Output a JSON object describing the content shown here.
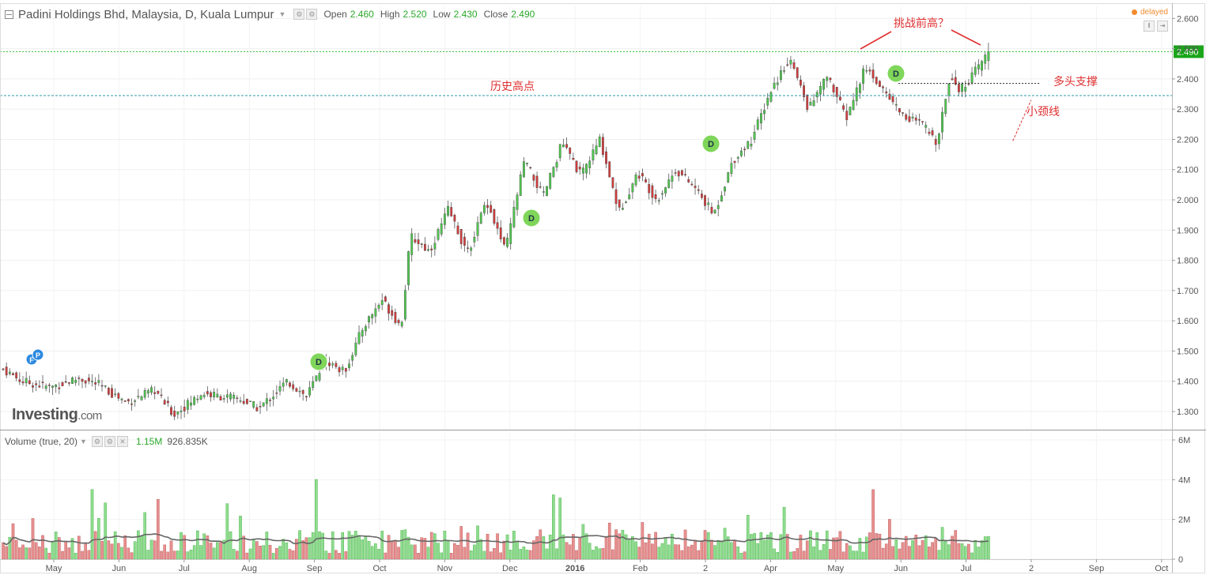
{
  "header": {
    "title": "Padini Holdings Bhd, Malaysia, D, Kuala Lumpur",
    "open_label": "Open",
    "open": "2.460",
    "high_label": "High",
    "high": "2.520",
    "low_label": "Low",
    "low": "2.430",
    "close_label": "Close",
    "close": "2.490"
  },
  "status": "delayed",
  "logo": {
    "brand": "Investing",
    "suffix": ".com"
  },
  "volume_header": {
    "label": "Volume (true, 20)",
    "value": "1.15M",
    "avg": "926.835K"
  },
  "colors": {
    "up": "#4ec94e",
    "down": "#d43c3c",
    "vol_up": "#8fdc8f",
    "vol_down": "#e89090",
    "annotation": "#e03030",
    "price_line": "#33bb33",
    "support_line": "#2a9aa8"
  },
  "chart_data": {
    "type": "candlestick",
    "price_axis": {
      "ticks": [
        "2.600",
        "2.500",
        "2.490",
        "2.400",
        "2.300",
        "2.200",
        "2.100",
        "2.000",
        "1.900",
        "1.800",
        "1.700",
        "1.600",
        "1.500",
        "1.400",
        "1.300"
      ],
      "range": [
        1.24,
        2.64
      ]
    },
    "volume_axis": {
      "ticks": [
        "6M",
        "4M",
        "2M",
        "0"
      ],
      "range": [
        0,
        6.2
      ]
    },
    "x_ticks": [
      "May",
      "Jun",
      "Jul",
      "Aug",
      "Sep",
      "Oct",
      "Nov",
      "Dec",
      "2016",
      "Feb",
      "2",
      "Apr",
      "May",
      "Jun",
      "Jul",
      "2",
      "Sep",
      "Oct"
    ],
    "last_price": 2.49,
    "historical_high_line": 2.345,
    "support_line": 2.385,
    "trendline": {
      "from": [
        0.435,
        2.195
      ],
      "to": [
        0.585,
        2.33
      ]
    },
    "key_prices": [
      {
        "t": 0.0,
        "p": 1.44
      },
      {
        "t": 0.02,
        "p": 1.4
      },
      {
        "t": 0.05,
        "p": 1.38
      },
      {
        "t": 0.08,
        "p": 1.41
      },
      {
        "t": 0.1,
        "p": 1.39
      },
      {
        "t": 0.13,
        "p": 1.33
      },
      {
        "t": 0.16,
        "p": 1.37
      },
      {
        "t": 0.18,
        "p": 1.29
      },
      {
        "t": 0.21,
        "p": 1.36
      },
      {
        "t": 0.25,
        "p": 1.34
      },
      {
        "t": 0.27,
        "p": 1.31
      },
      {
        "t": 0.3,
        "p": 1.4
      },
      {
        "t": 0.32,
        "p": 1.35
      },
      {
        "t": 0.34,
        "p": 1.47
      },
      {
        "t": 0.36,
        "p": 1.43
      },
      {
        "t": 0.38,
        "p": 1.58
      },
      {
        "t": 0.4,
        "p": 1.67
      },
      {
        "t": 0.42,
        "p": 1.58
      },
      {
        "t": 0.43,
        "p": 1.88
      },
      {
        "t": 0.45,
        "p": 1.83
      },
      {
        "t": 0.47,
        "p": 1.97
      },
      {
        "t": 0.49,
        "p": 1.82
      },
      {
        "t": 0.51,
        "p": 2.0
      },
      {
        "t": 0.53,
        "p": 1.83
      },
      {
        "t": 0.55,
        "p": 2.13
      },
      {
        "t": 0.57,
        "p": 2.01
      },
      {
        "t": 0.59,
        "p": 2.19
      },
      {
        "t": 0.61,
        "p": 2.08
      },
      {
        "t": 0.63,
        "p": 2.2
      },
      {
        "t": 0.65,
        "p": 1.96
      },
      {
        "t": 0.67,
        "p": 2.09
      },
      {
        "t": 0.69,
        "p": 2.0
      },
      {
        "t": 0.71,
        "p": 2.1
      },
      {
        "t": 0.73,
        "p": 2.04
      },
      {
        "t": 0.75,
        "p": 1.95
      },
      {
        "t": 0.77,
        "p": 2.13
      },
      {
        "t": 0.79,
        "p": 2.2
      },
      {
        "t": 0.81,
        "p": 2.36
      },
      {
        "t": 0.83,
        "p": 2.47
      },
      {
        "t": 0.85,
        "p": 2.3
      },
      {
        "t": 0.87,
        "p": 2.41
      },
      {
        "t": 0.89,
        "p": 2.27
      },
      {
        "t": 0.91,
        "p": 2.44
      },
      {
        "t": 0.93,
        "p": 2.36
      },
      {
        "t": 0.95,
        "p": 2.28
      },
      {
        "t": 0.97,
        "p": 2.25
      },
      {
        "t": 0.985,
        "p": 2.19
      },
      {
        "t": 1.0,
        "p": 2.42
      },
      {
        "t": 1.01,
        "p": 2.36
      },
      {
        "t": 1.03,
        "p": 2.44
      },
      {
        "t": 1.04,
        "p": 2.49
      }
    ],
    "annotations": [
      {
        "text": "挑战前高？"
      },
      {
        "text": "历史高点"
      },
      {
        "text": "多头支撑"
      },
      {
        "text": "小颈线"
      }
    ],
    "event_markers": [
      {
        "letter": "F",
        "kind": "blue"
      },
      {
        "letter": "P",
        "kind": "blue"
      },
      {
        "letter": "D",
        "kind": "green"
      },
      {
        "letter": "D",
        "kind": "green"
      },
      {
        "letter": "D",
        "kind": "green"
      },
      {
        "letter": "D",
        "kind": "green"
      }
    ]
  }
}
